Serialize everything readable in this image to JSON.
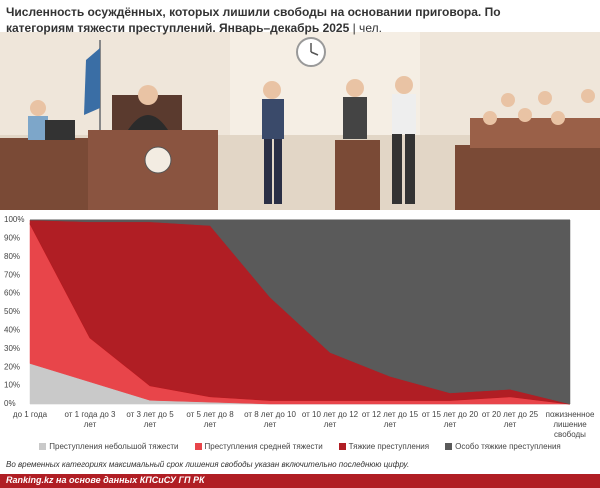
{
  "chart_data": {
    "type": "stacked-area",
    "title": "Численность осуждённых, которых лишили свободы на основании приговора. По категориям тяжести преступлений. Январь–декабрь 2025",
    "unit": "| чел.",
    "categories": [
      "до 1 года",
      "от 1 года до 3 лет",
      "от 3 лет до 5 лет",
      "от 5 лет до 8 лет",
      "от 8 лет до 10 лет",
      "от 10 лет до 12 лет",
      "от 12 лет до 15 лет",
      "от 15 лет до 20 лет",
      "от 20 лет до 25 лет",
      "пожизненное лишение свободы"
    ],
    "series": [
      {
        "name": "Преступления небольшой тяжести",
        "color": "#c9c9c9",
        "values": [
          22,
          12,
          2,
          1,
          0,
          0,
          0,
          0,
          0,
          0
        ]
      },
      {
        "name": "Преступления средней тяжести",
        "color": "#e8454a",
        "values": [
          76,
          24,
          8,
          3,
          2,
          2,
          2,
          2,
          4,
          0
        ]
      },
      {
        "name": "Тяжкие преступления",
        "color": "#b01e24",
        "values": [
          2,
          63,
          89,
          93,
          56,
          26,
          13,
          4,
          4,
          0
        ]
      },
      {
        "name": "Особо тяжкие преступления",
        "color": "#5a5a5a",
        "values": [
          0,
          1,
          1,
          3,
          42,
          72,
          85,
          94,
          92,
          100
        ]
      }
    ],
    "ylim": [
      0,
      100
    ],
    "yticks": [
      {
        "value": 0,
        "label": "0%"
      },
      {
        "value": 10,
        "label": "10%"
      },
      {
        "value": 20,
        "label": "20%"
      },
      {
        "value": 30,
        "label": "30%"
      },
      {
        "value": 40,
        "label": "40%"
      },
      {
        "value": 50,
        "label": "50%"
      },
      {
        "value": 60,
        "label": "60%"
      },
      {
        "value": 70,
        "label": "70%"
      },
      {
        "value": 80,
        "label": "80%"
      },
      {
        "value": 90,
        "label": "90%"
      },
      {
        "value": 100,
        "label": "100%"
      }
    ],
    "grid": true,
    "note": "Во временных категориях максимальный срок лишения свободы указан включительно последнюю цифру.",
    "source": "Ranking.kz на основе данных КПСиСУ ГП РК"
  }
}
